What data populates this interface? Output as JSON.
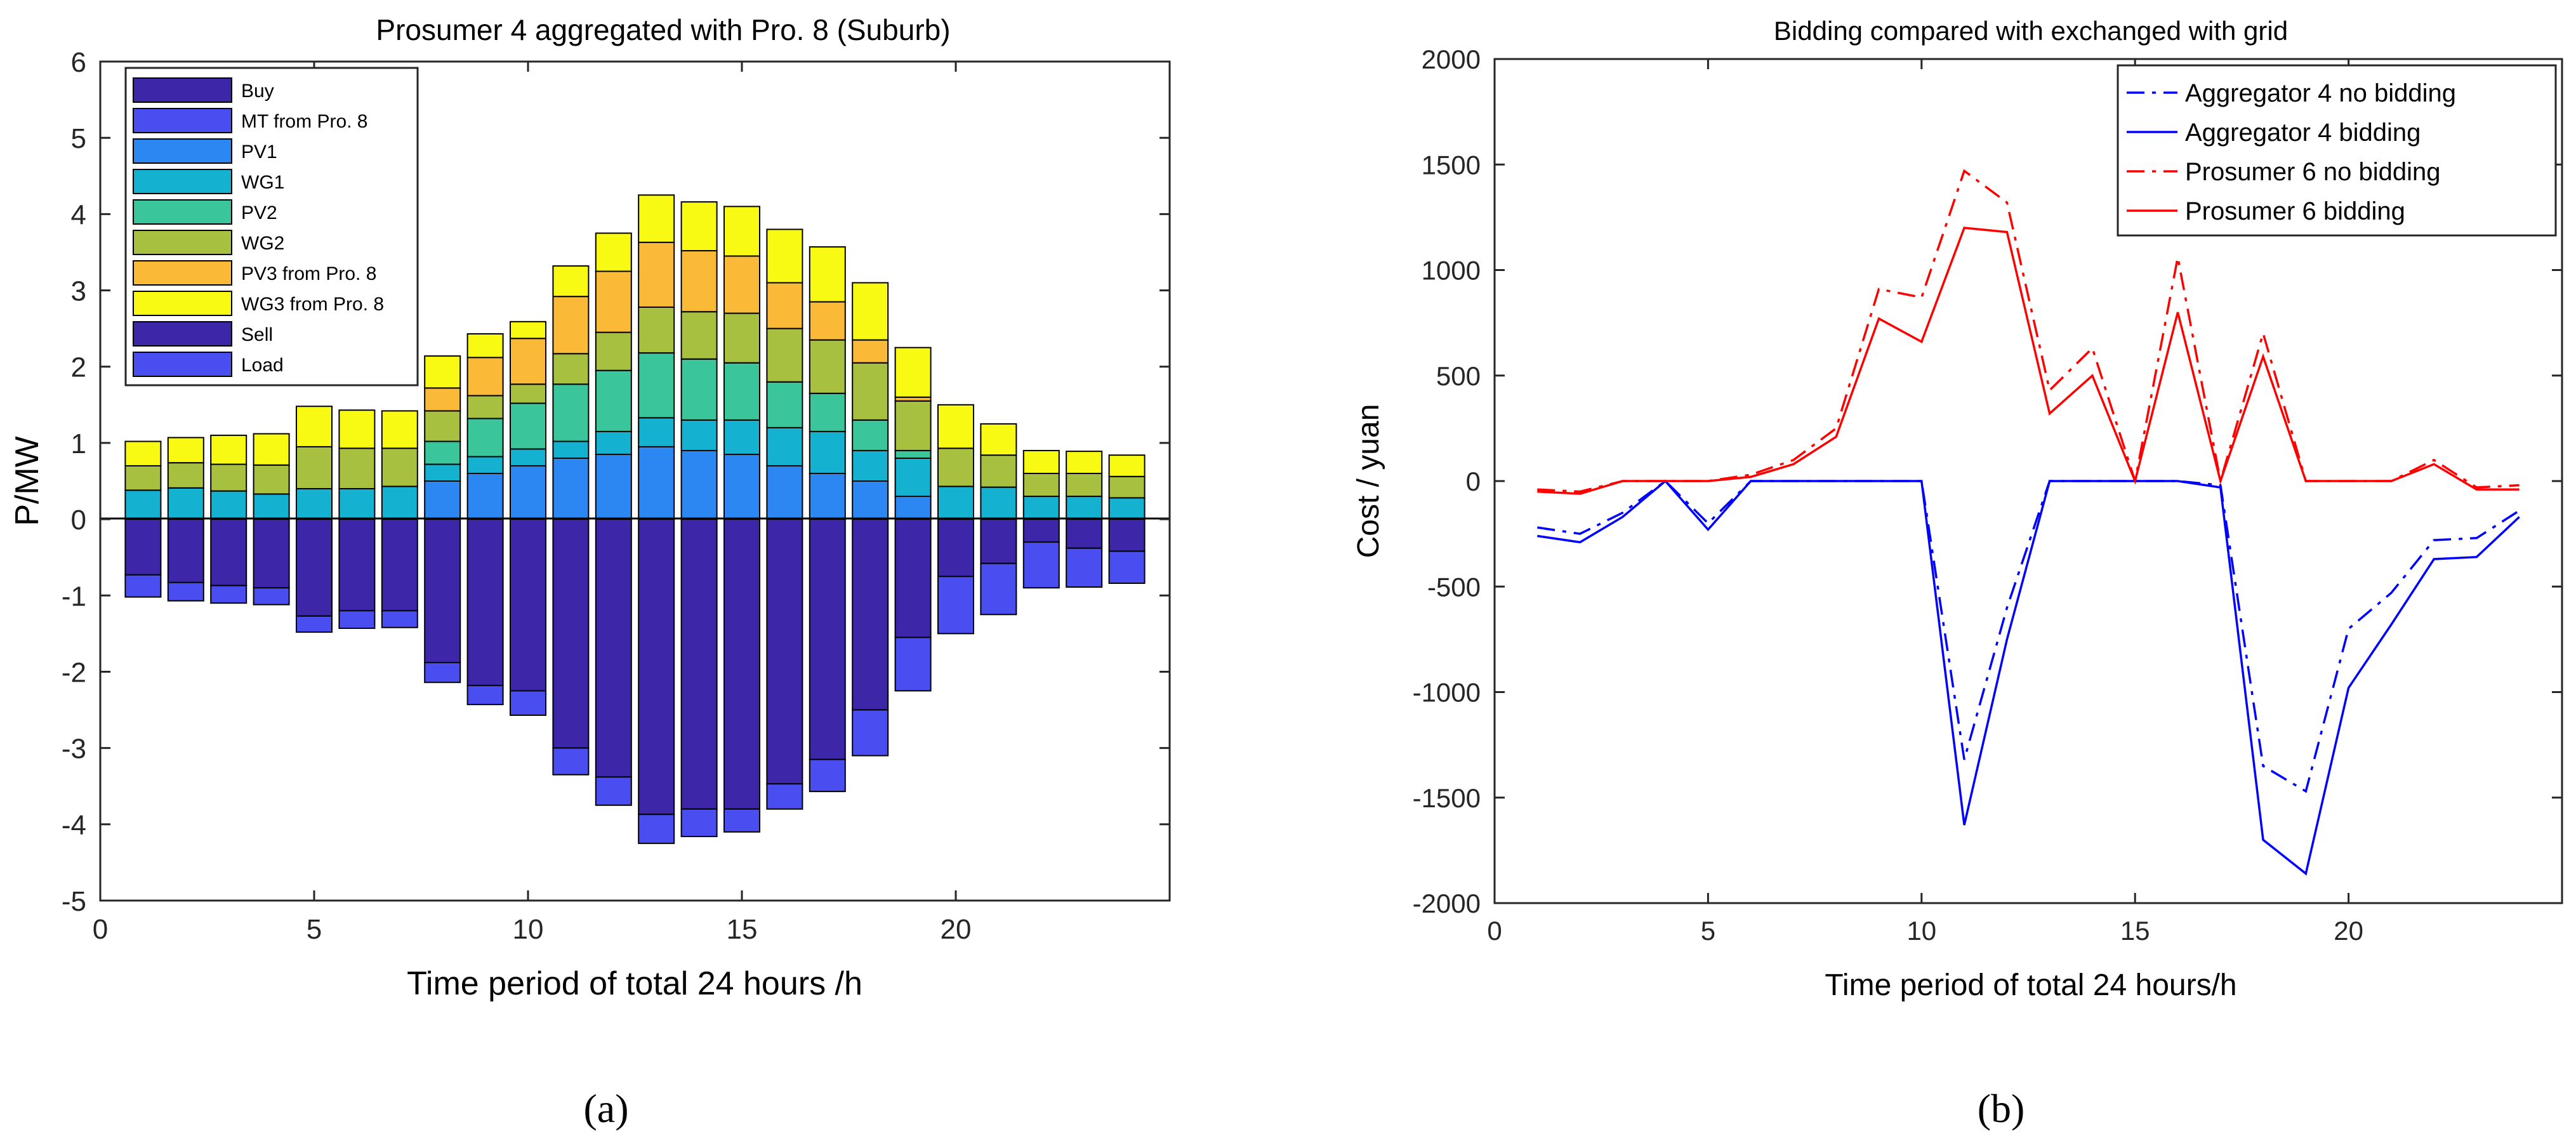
{
  "chart_data": [
    {
      "type": "bar",
      "stacked": true,
      "title": "Prosumer 4 aggregated with Pro. 8 (Suburb)",
      "xlabel": "Time period of total 24 hours /h",
      "ylabel": "P/MW",
      "xlim": [
        0,
        25
      ],
      "ylim": [
        -5,
        6
      ],
      "x_ticks": [
        0,
        5,
        10,
        15,
        20
      ],
      "y_ticks": [
        -5,
        -4,
        -3,
        -2,
        -1,
        0,
        1,
        2,
        3,
        4,
        5,
        6
      ],
      "x": [
        1,
        2,
        3,
        4,
        5,
        6,
        7,
        8,
        9,
        10,
        11,
        12,
        13,
        14,
        15,
        16,
        17,
        18,
        19,
        20,
        21,
        22,
        23,
        24
      ],
      "legend_position": "top-left",
      "caption": "(a)",
      "series": [
        {
          "name": "Buy",
          "color": "#3d26a8",
          "values": [
            0,
            0,
            0,
            0,
            0,
            0,
            0,
            0,
            0,
            0,
            0,
            0,
            0,
            0,
            0,
            0,
            0,
            0,
            0,
            0,
            0,
            0,
            0,
            0
          ]
        },
        {
          "name": "MT from Pro. 8",
          "color": "#4a4ef0",
          "values": [
            0,
            0,
            0,
            0,
            0,
            0,
            0,
            0,
            0,
            0,
            0,
            0,
            0,
            0,
            0,
            0,
            0,
            0,
            0,
            0,
            0,
            0,
            0,
            0
          ]
        },
        {
          "name": "PV1",
          "color": "#2c87f2",
          "values": [
            0,
            0,
            0,
            0,
            0,
            0,
            0,
            0.5,
            0.6,
            0.7,
            0.8,
            0.85,
            0.95,
            0.9,
            0.85,
            0.7,
            0.6,
            0.5,
            0.3,
            0,
            0,
            0,
            0,
            0
          ]
        },
        {
          "name": "WG1",
          "color": "#15b1d1",
          "values": [
            0.38,
            0.41,
            0.37,
            0.33,
            0.4,
            0.4,
            0.43,
            0.22,
            0.22,
            0.22,
            0.22,
            0.3,
            0.38,
            0.4,
            0.45,
            0.5,
            0.55,
            0.4,
            0.5,
            0.43,
            0.42,
            0.3,
            0.3,
            0.28
          ]
        },
        {
          "name": "PV2",
          "color": "#3bc59a",
          "values": [
            0,
            0,
            0,
            0,
            0,
            0,
            0,
            0.3,
            0.5,
            0.6,
            0.75,
            0.8,
            0.85,
            0.8,
            0.75,
            0.6,
            0.5,
            0.4,
            0.1,
            0,
            0,
            0,
            0,
            0
          ]
        },
        {
          "name": "WG2",
          "color": "#a7c03f",
          "values": [
            0.32,
            0.33,
            0.35,
            0.38,
            0.55,
            0.53,
            0.5,
            0.4,
            0.3,
            0.25,
            0.4,
            0.5,
            0.6,
            0.62,
            0.65,
            0.7,
            0.7,
            0.75,
            0.65,
            0.5,
            0.42,
            0.3,
            0.3,
            0.28
          ]
        },
        {
          "name": "PV3 from Pro. 8",
          "color": "#fbb938",
          "values": [
            0,
            0,
            0,
            0,
            0,
            0,
            0,
            0.3,
            0.5,
            0.6,
            0.75,
            0.8,
            0.85,
            0.8,
            0.75,
            0.6,
            0.5,
            0.3,
            0.05,
            0,
            0,
            0,
            0,
            0
          ]
        },
        {
          "name": "WG3 from Pro. 8",
          "color": "#f9fa14",
          "values": [
            0.32,
            0.33,
            0.38,
            0.41,
            0.53,
            0.5,
            0.49,
            0.42,
            0.31,
            0.22,
            0.4,
            0.5,
            0.62,
            0.64,
            0.65,
            0.7,
            0.72,
            0.75,
            0.65,
            0.57,
            0.41,
            0.3,
            0.29,
            0.28
          ]
        },
        {
          "name": "Sell",
          "color": "#3d26a8",
          "values": [
            -0.73,
            -0.83,
            -0.87,
            -0.9,
            -1.27,
            -1.2,
            -1.2,
            -1.88,
            -2.18,
            -2.25,
            -3.0,
            -3.38,
            -3.87,
            -3.8,
            -3.8,
            -3.47,
            -3.15,
            -2.5,
            -1.55,
            -0.75,
            -0.58,
            -0.3,
            -0.38,
            -0.42
          ]
        },
        {
          "name": "Load",
          "color": "#4a4ef0",
          "values": [
            -0.29,
            -0.24,
            -0.23,
            -0.22,
            -0.21,
            -0.23,
            -0.22,
            -0.26,
            -0.25,
            -0.32,
            -0.35,
            -0.37,
            -0.38,
            -0.36,
            -0.3,
            -0.33,
            -0.42,
            -0.6,
            -0.7,
            -0.75,
            -0.67,
            -0.6,
            -0.51,
            -0.42
          ]
        }
      ]
    },
    {
      "type": "line",
      "title": "Bidding compared with exchanged with grid",
      "xlabel": "Time period of total 24 hours/h",
      "ylabel": "Cost / yuan",
      "xlim": [
        0,
        25
      ],
      "ylim": [
        -2000,
        2000
      ],
      "x_ticks": [
        0,
        5,
        10,
        15,
        20
      ],
      "y_ticks": [
        -2000,
        -1500,
        -1000,
        -500,
        0,
        500,
        1000,
        1500,
        2000
      ],
      "x": [
        1,
        2,
        3,
        4,
        5,
        6,
        7,
        8,
        9,
        10,
        11,
        12,
        13,
        14,
        15,
        16,
        17,
        18,
        19,
        20,
        21,
        22,
        23,
        24
      ],
      "legend_position": "top-right",
      "caption": "(b)",
      "series": [
        {
          "name": "Aggregator 4 no bidding",
          "color": "#0000ff",
          "linestyle": "dashdot",
          "values": [
            -220,
            -250,
            -150,
            0,
            -200,
            0,
            0,
            0,
            0,
            0,
            -1320,
            -600,
            0,
            0,
            0,
            0,
            -20,
            -1350,
            -1470,
            -700,
            -530,
            -280,
            -270,
            -140
          ]
        },
        {
          "name": "Aggregator 4 bidding",
          "color": "#0000ff",
          "linestyle": "solid",
          "values": [
            -260,
            -290,
            -170,
            0,
            -230,
            0,
            0,
            0,
            0,
            0,
            -1630,
            -750,
            0,
            0,
            0,
            0,
            -30,
            -1700,
            -1860,
            -980,
            -680,
            -370,
            -360,
            -170
          ]
        },
        {
          "name": "Prosumer 6 no bidding",
          "color": "#ff0000",
          "linestyle": "dashdot",
          "values": [
            -40,
            -50,
            0,
            0,
            0,
            30,
            100,
            250,
            910,
            870,
            1470,
            1320,
            430,
            630,
            0,
            1060,
            0,
            700,
            0,
            0,
            0,
            100,
            -30,
            -20
          ]
        },
        {
          "name": "Prosumer 6 bidding",
          "color": "#ff0000",
          "linestyle": "solid",
          "values": [
            -50,
            -60,
            0,
            0,
            0,
            20,
            80,
            210,
            770,
            660,
            1200,
            1180,
            320,
            500,
            0,
            800,
            0,
            590,
            0,
            0,
            0,
            80,
            -40,
            -40
          ]
        }
      ]
    }
  ]
}
